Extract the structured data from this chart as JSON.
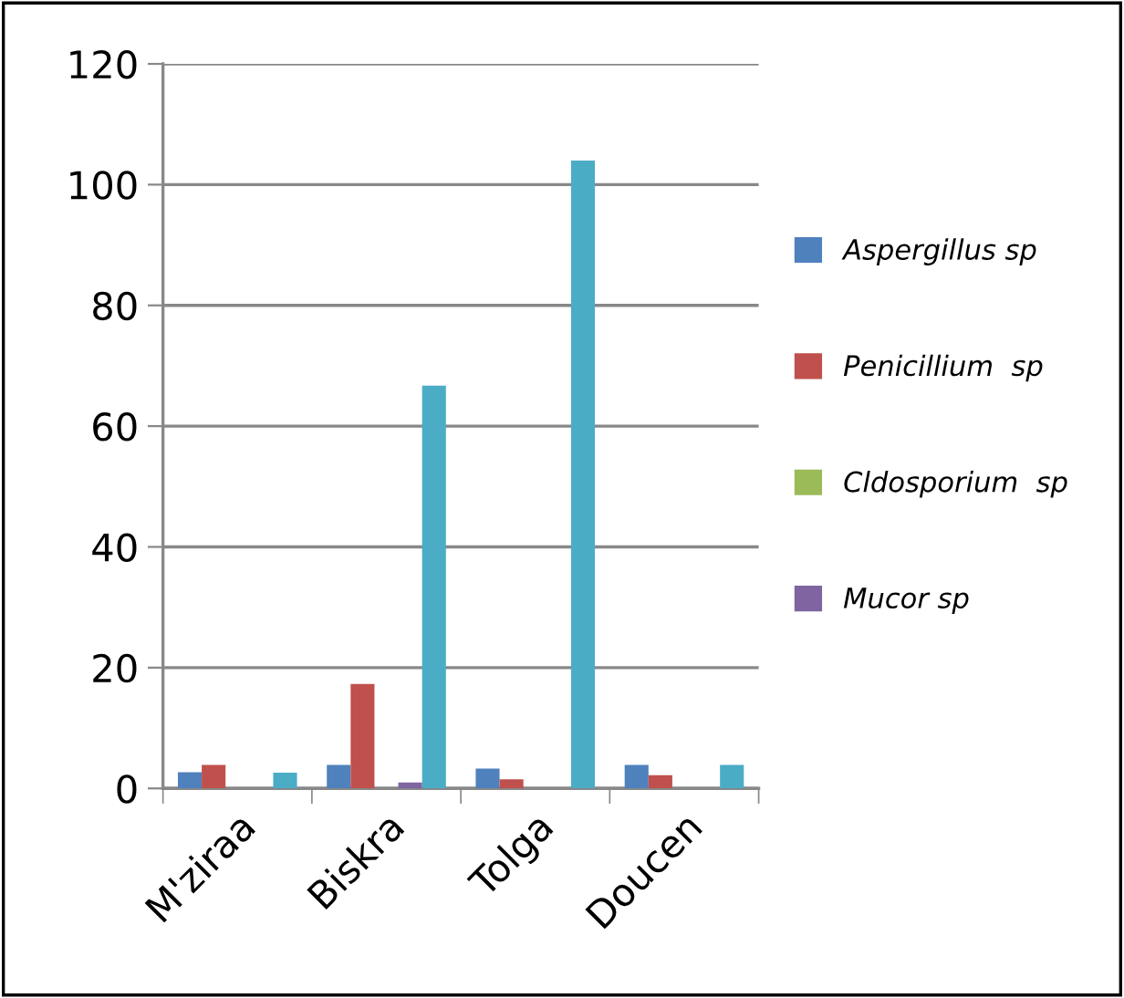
{
  "chart_data": {
    "type": "bar",
    "categories": [
      "M'ziraa",
      "Biskra",
      "Tolga",
      "Doucen"
    ],
    "series": [
      {
        "name": "Aspergillus sp",
        "color": "#4f81bd",
        "values": [
          2.7,
          3.9,
          3.3,
          3.9
        ]
      },
      {
        "name": "Penicillium  sp",
        "color": "#c0504d",
        "values": [
          3.9,
          17.3,
          1.5,
          2.2
        ]
      },
      {
        "name": "Cldosporium  sp",
        "color": "#9bbb59",
        "values": [
          null,
          null,
          null,
          null
        ]
      },
      {
        "name": "Mucor sp",
        "color": "#8064a2",
        "values": [
          null,
          1.0,
          null,
          null
        ]
      },
      {
        "color": "#4bacc6",
        "values": [
          2.6,
          66.7,
          104,
          3.9
        ]
      }
    ],
    "ylim": [
      0,
      120
    ],
    "yticks": [
      0,
      20,
      40,
      60,
      80,
      100,
      120
    ],
    "grid": "y",
    "legend": "right"
  }
}
